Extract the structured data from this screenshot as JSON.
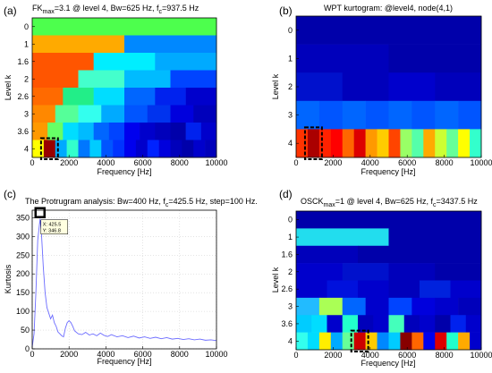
{
  "chart_data": [
    {
      "type": "heatmap",
      "panel_label": "(a)",
      "title_main": "FK",
      "title_sub": "max",
      "title_rest": "=3.1 @ level 4, Bw=625 Hz, f",
      "title_sub2": "c",
      "title_end": "=937.5 Hz",
      "xlabel": "Frequency [Hz]",
      "ylabel": "Level k",
      "xticks": [
        "0",
        "2000",
        "4000",
        "6000",
        "8000",
        "10000"
      ],
      "yticks": [
        "0",
        "1",
        "1.6",
        "2",
        "2.6",
        "3",
        "3.6",
        "4"
      ],
      "xlim": [
        0,
        10000
      ],
      "rows": [
        {
          "level": "0",
          "colors": [
            "#4dff4d"
          ]
        },
        {
          "level": "1",
          "colors": [
            "#ffaa00",
            "#0088ff"
          ]
        },
        {
          "level": "1.6",
          "colors": [
            "#ff5500",
            "#00eeff",
            "#00aaff"
          ]
        },
        {
          "level": "2",
          "colors": [
            "#ff5500",
            "#44ffcc",
            "#00bbff",
            "#0044ff"
          ]
        },
        {
          "level": "2.6",
          "colors": [
            "#ff6a00",
            "#22ee88",
            "#00ddff",
            "#0066ff",
            "#0022ee",
            "#0000cc"
          ]
        },
        {
          "level": "3",
          "colors": [
            "#ff8800",
            "#55ff99",
            "#33ffee",
            "#00aaff",
            "#0055ff",
            "#0033ee",
            "#0000dd",
            "#0000bb"
          ]
        },
        {
          "level": "3.6",
          "colors": [
            "#ff9900",
            "#66ff66",
            "#00ddff",
            "#00bbff",
            "#0066ff",
            "#0044ff",
            "#0000ee",
            "#0000cc",
            "#0000bb",
            "#0000aa",
            "#0022ee",
            "#0000cc"
          ]
        },
        {
          "level": "4",
          "colors": [
            "#ffff00",
            "#990000",
            "#00aaff",
            "#33ffcc",
            "#0077ff",
            "#00ccff",
            "#0055ff",
            "#0033ff",
            "#0000ee",
            "#0000cc",
            "#0022ff",
            "#0000dd",
            "#0000bb",
            "#0000aa",
            "#0000cc",
            "#0000bb"
          ]
        }
      ],
      "highlight": {
        "level": "4",
        "freq_from": 625,
        "freq_to": 1250
      }
    },
    {
      "type": "heatmap",
      "panel_label": "(b)",
      "title": "WPT kurtogram: @level4, node(4,1)",
      "xlabel": "Frequency [Hz]",
      "ylabel": "Level k",
      "xticks": [
        "0",
        "2000",
        "4000",
        "6000",
        "8000",
        "10000"
      ],
      "yticks": [
        "0",
        "1",
        "2",
        "3",
        "4"
      ],
      "xlim": [
        0,
        10000
      ],
      "rows": [
        {
          "level": "0",
          "colors": [
            "#0000aa"
          ]
        },
        {
          "level": "1",
          "colors": [
            "#0000bb",
            "#0000aa"
          ]
        },
        {
          "level": "2",
          "colors": [
            "#0011cc",
            "#0000bb",
            "#0000cc",
            "#0000bb"
          ]
        },
        {
          "level": "3",
          "colors": [
            "#0066ff",
            "#0055ff",
            "#0066ff",
            "#0055ff",
            "#0066ff",
            "#0055ff",
            "#0066ff",
            "#0055ff"
          ]
        },
        {
          "level": "4",
          "colors": [
            "#ff3300",
            "#aa0000",
            "#ff2200",
            "#ff0000",
            "#ff6600",
            "#dd0000",
            "#ff9900",
            "#ffcc00",
            "#ff4400",
            "#99ff66",
            "#55ffaa",
            "#ffaa00",
            "#ccff33",
            "#66ff99",
            "#ffff00",
            "#33ffcc"
          ]
        }
      ],
      "highlight": {
        "level": "4",
        "freq_from": 625,
        "freq_to": 1250
      }
    },
    {
      "type": "line",
      "panel_label": "(c)",
      "title": "The Protrugram analysis: Bw=400 Hz, f",
      "title_sub": "c",
      "title_end": "=425.5 Hz, step=100 Hz.",
      "xlabel": "Frequency [Hz]",
      "ylabel": "Kurtosis",
      "xticks": [
        "0",
        "2000",
        "4000",
        "6000",
        "8000",
        "10000"
      ],
      "yticks": [
        "0",
        "50",
        "100",
        "150",
        "200",
        "250",
        "300",
        "350"
      ],
      "xlim": [
        0,
        10000
      ],
      "ylim": [
        0,
        370
      ],
      "grid": true,
      "series": [
        {
          "color": "#6b6bff",
          "x": [
            0,
            100,
            200,
            300,
            425.5,
            500,
            600,
            700,
            800,
            900,
            1000,
            1100,
            1200,
            1300,
            1400,
            1500,
            1600,
            1700,
            1800,
            1900,
            2000,
            2100,
            2200,
            2300,
            2500,
            2700,
            2900,
            3100,
            3300,
            3500,
            3700,
            3900,
            4100,
            4300,
            4600,
            4900,
            5200,
            5500,
            5800,
            6100,
            6400,
            6700,
            7000,
            7300,
            7600,
            7900,
            8200,
            8500,
            8800,
            9100,
            9400,
            9700,
            10000
          ],
          "y": [
            5,
            40,
            150,
            290,
            346.8,
            310,
            220,
            150,
            110,
            95,
            80,
            90,
            70,
            60,
            45,
            40,
            35,
            32,
            55,
            70,
            75,
            70,
            60,
            48,
            40,
            38,
            44,
            37,
            40,
            35,
            42,
            36,
            33,
            38,
            32,
            35,
            30,
            34,
            29,
            32,
            28,
            31,
            27,
            30,
            26,
            28,
            25,
            27,
            24,
            26,
            23,
            24,
            22
          ]
        }
      ],
      "datatip": {
        "x_label": "X: 425.5",
        "y_label": "Y: 346.8",
        "x": 425.5,
        "y": 346.8
      }
    },
    {
      "type": "heatmap",
      "panel_label": "(d)",
      "title_main": "OSCK",
      "title_sub": "max",
      "title_rest": "=1 @ level 4, Bw=625 Hz, f",
      "title_sub2": "c",
      "title_end": "=3437.5 Hz",
      "xlabel": "Frequency [Hz]",
      "ylabel": "Level k",
      "xticks": [
        "0",
        "2000",
        "4000",
        "6000",
        "8000",
        "10000"
      ],
      "yticks": [
        "0",
        "1",
        "1.6",
        "2",
        "2.6",
        "3",
        "3.6",
        "4"
      ],
      "xlim": [
        0,
        10000
      ],
      "rows": [
        {
          "level": "0",
          "colors": [
            "#0000aa"
          ]
        },
        {
          "level": "1",
          "colors": [
            "#22ddee",
            "#0000aa"
          ]
        },
        {
          "level": "1.6",
          "colors": [
            "#0000bb",
            "#0000aa",
            "#0000aa"
          ]
        },
        {
          "level": "2",
          "colors": [
            "#0000cc",
            "#0011cc",
            "#0000bb",
            "#0000aa"
          ]
        },
        {
          "level": "2.6",
          "colors": [
            "#0000cc",
            "#0011dd",
            "#0000cc",
            "#0000bb",
            "#0022dd",
            "#0000cc"
          ]
        },
        {
          "level": "3",
          "colors": [
            "#22bbff",
            "#aaff55",
            "#0066ff",
            "#0000cc",
            "#0044ff",
            "#0000dd",
            "#0000cc",
            "#0000bb"
          ]
        },
        {
          "level": "3.6",
          "colors": [
            "#00ccff",
            "#00ddff",
            "#0000cc",
            "#22ffcc",
            "#0000bb",
            "#0000cc",
            "#44ffbb",
            "#0000bb",
            "#0000cc",
            "#0000aa",
            "#0022ee",
            "#0000cc"
          ]
        },
        {
          "level": "4",
          "colors": [
            "#33ffee",
            "#00ddff",
            "#ffee00",
            "#00aaff",
            "#66ff99",
            "#cc0000",
            "#ffcc00",
            "#0088ff",
            "#00ccff",
            "#880000",
            "#ff6600",
            "#0000ee",
            "#dd0000",
            "#22ffcc",
            "#ffaa00",
            "#0000cc"
          ]
        }
      ],
      "highlight": {
        "level": "4",
        "freq_from": 3125,
        "freq_to": 3750
      }
    }
  ]
}
